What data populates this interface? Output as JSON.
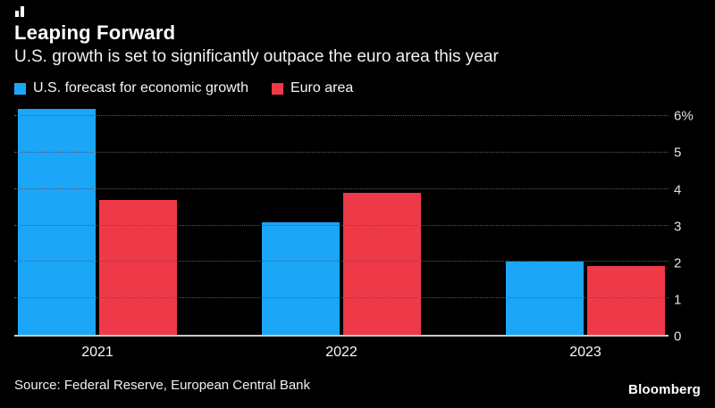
{
  "header": {
    "title": "Leaping Forward",
    "subtitle": "U.S. growth is set to significantly outpace the euro area this year"
  },
  "legend": [
    {
      "label": "U.S. forecast for economic growth",
      "color": "#1ba6f7"
    },
    {
      "label": "Euro area",
      "color": "#ee3948"
    }
  ],
  "chart_data": {
    "type": "bar",
    "categories": [
      "2021",
      "2022",
      "2023"
    ],
    "series": [
      {
        "name": "U.S. forecast for economic growth",
        "color": "#1ba6f7",
        "values": [
          6.2,
          3.1,
          2.0
        ]
      },
      {
        "name": "Euro area",
        "color": "#ee3948",
        "values": [
          3.7,
          3.9,
          1.9
        ]
      }
    ],
    "title": "Leaping Forward",
    "subtitle": "U.S. growth is set to significantly outpace the euro area this year",
    "xlabel": "",
    "ylabel": "",
    "y_ticks": [
      "6%",
      "5",
      "4",
      "3",
      "2",
      "1",
      "0"
    ],
    "y_tick_values": [
      6,
      5,
      4,
      3,
      2,
      1,
      0
    ],
    "ylim": [
      0,
      6.3
    ],
    "grid": "dotted-horizontal",
    "axis_label_side": "right",
    "legend_position": "top-left"
  },
  "footer": {
    "source": "Source: Federal Reserve, European Central Bank",
    "brand": "Bloomberg"
  }
}
